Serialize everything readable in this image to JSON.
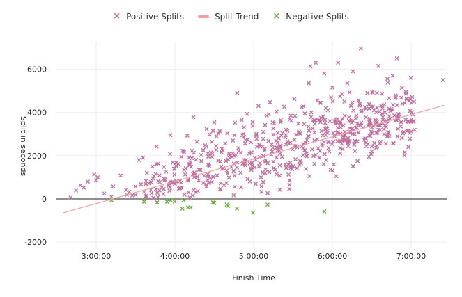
{
  "legend": {
    "positive_label": "Positive Splits",
    "trend_label": "Split Trend",
    "negative_label": "Negative Splits"
  },
  "colors": {
    "positive": "#c0709e",
    "negative": "#6aaa3a",
    "trend": "#f4a0a0",
    "zero_line": "#222222",
    "grid": "#eeeeee"
  },
  "chart_data": {
    "type": "scatter",
    "title": "",
    "xlabel": "Finish Time",
    "ylabel": "Split in seconds",
    "x_ticks": [
      "3:00:00",
      "4:00:00",
      "5:00:00",
      "6:00:00",
      "7:00:00"
    ],
    "y_ticks": [
      -2000,
      0,
      2000,
      4000,
      6000
    ],
    "xlim_seconds": [
      9300,
      26800
    ],
    "ylim": [
      -2200,
      7200
    ],
    "grid": true,
    "legend_position": "top",
    "trend_line": {
      "x_seconds": [
        9300,
        26700
      ],
      "y": [
        -640,
        4330
      ]
    },
    "series": [
      {
        "name": "Negative Splits",
        "points": [
          [
            11500,
            -60
          ],
          [
            12990,
            -130
          ],
          [
            13590,
            -160
          ],
          [
            14040,
            -130
          ],
          [
            14200,
            -60
          ],
          [
            14390,
            -130
          ],
          [
            14740,
            -450
          ],
          [
            14800,
            -60
          ],
          [
            15000,
            -390
          ],
          [
            15120,
            -390
          ],
          [
            16140,
            -160
          ],
          [
            16200,
            -190
          ],
          [
            16770,
            -260
          ],
          [
            16830,
            -320
          ],
          [
            17240,
            -450
          ],
          [
            17970,
            -640
          ],
          [
            18640,
            -260
          ],
          [
            21230,
            -580
          ]
        ]
      },
      {
        "name": "Positive Splits",
        "points": [
          [
            9630,
            60
          ],
          [
            9880,
            390
          ],
          [
            10080,
            620
          ],
          [
            10230,
            520
          ],
          [
            10420,
            800
          ],
          [
            10710,
            1130
          ],
          [
            10780,
            860
          ],
          [
            10870,
            1000
          ],
          [
            11170,
            250
          ],
          [
            11500,
            100
          ],
          [
            11580,
            580
          ],
          [
            11920,
            1080
          ],
          [
            12160,
            420
          ],
          [
            12200,
            190
          ],
          [
            12320,
            330
          ],
          [
            12450,
            160
          ],
          [
            12600,
            580
          ],
          [
            12850,
            680
          ],
          [
            12990,
            320
          ],
          [
            13100,
            150
          ],
          [
            13200,
            720
          ],
          [
            13300,
            420
          ],
          [
            13400,
            950
          ],
          [
            13520,
            1150
          ],
          [
            13600,
            280
          ],
          [
            13700,
            770
          ],
          [
            13800,
            540
          ],
          [
            13900,
            1480
          ],
          [
            13950,
            900
          ],
          [
            14000,
            1260
          ],
          [
            14100,
            640
          ],
          [
            14150,
            380
          ],
          [
            14180,
            2080
          ],
          [
            14200,
            2950
          ],
          [
            14300,
            1680
          ],
          [
            14380,
            1120
          ],
          [
            14480,
            810
          ],
          [
            14560,
            1620
          ],
          [
            14640,
            490
          ],
          [
            14700,
            1950
          ],
          [
            14800,
            2210
          ],
          [
            14900,
            1420
          ],
          [
            15000,
            900
          ],
          [
            15100,
            1700
          ],
          [
            15180,
            2230
          ],
          [
            15250,
            3780
          ],
          [
            15300,
            1100
          ],
          [
            15400,
            2650
          ],
          [
            15500,
            1350
          ],
          [
            15600,
            2030
          ],
          [
            15700,
            740
          ],
          [
            15780,
            2480
          ],
          [
            15850,
            3230
          ],
          [
            15950,
            1580
          ],
          [
            16050,
            2150
          ],
          [
            16150,
            1020
          ],
          [
            16200,
            3540
          ],
          [
            16300,
            2900
          ],
          [
            16380,
            1770
          ],
          [
            16450,
            3130
          ],
          [
            16550,
            2320
          ],
          [
            16650,
            640
          ],
          [
            16700,
            2570
          ],
          [
            16800,
            3030
          ],
          [
            16900,
            1900
          ],
          [
            16980,
            1480
          ],
          [
            17050,
            2700
          ],
          [
            17150,
            3520
          ],
          [
            17250,
            4900
          ],
          [
            17300,
            2350
          ],
          [
            17400,
            1210
          ],
          [
            17450,
            3650
          ],
          [
            17550,
            2870
          ],
          [
            17640,
            1800
          ],
          [
            17700,
            3930
          ],
          [
            17800,
            2100
          ],
          [
            17880,
            2620
          ],
          [
            17950,
            3380
          ],
          [
            18050,
            1450
          ],
          [
            18120,
            2930
          ],
          [
            18220,
            4300
          ],
          [
            18300,
            2420
          ],
          [
            18360,
            580
          ],
          [
            18440,
            3100
          ],
          [
            18520,
            1720
          ],
          [
            18600,
            3850
          ],
          [
            18680,
            2680
          ],
          [
            18750,
            4470
          ],
          [
            18820,
            2040
          ],
          [
            18900,
            3250
          ],
          [
            18980,
            1350
          ],
          [
            19050,
            4030
          ],
          [
            19150,
            2800
          ],
          [
            19230,
            3550
          ],
          [
            19300,
            1950
          ],
          [
            19400,
            4270
          ],
          [
            19480,
            2520
          ],
          [
            19550,
            3150
          ],
          [
            19640,
            660
          ],
          [
            19700,
            3850
          ],
          [
            19780,
            2300
          ],
          [
            19860,
            4620
          ],
          [
            19950,
            2980
          ],
          [
            20040,
            3480
          ],
          [
            20100,
            1580
          ],
          [
            20200,
            4250
          ],
          [
            20270,
            2550
          ],
          [
            20340,
            3950
          ],
          [
            20430,
            2100
          ],
          [
            20520,
            5350
          ],
          [
            20600,
            6130
          ],
          [
            20700,
            3250
          ],
          [
            20780,
            2700
          ],
          [
            20840,
            6300
          ],
          [
            20920,
            4550
          ],
          [
            21000,
            1900
          ],
          [
            21080,
            3750
          ],
          [
            21150,
            2450
          ],
          [
            21230,
            5800
          ],
          [
            21300,
            4200
          ],
          [
            21380,
            3050
          ],
          [
            21460,
            2200
          ],
          [
            21540,
            4700
          ],
          [
            21600,
            5150
          ],
          [
            21700,
            2900
          ],
          [
            21780,
            3650
          ],
          [
            21860,
            6300
          ],
          [
            21950,
            2350
          ],
          [
            22030,
            4850
          ],
          [
            22100,
            3400
          ],
          [
            22200,
            2700
          ],
          [
            22280,
            5350
          ],
          [
            22360,
            3100
          ],
          [
            22450,
            4300
          ],
          [
            22540,
            5900
          ],
          [
            22600,
            2500
          ],
          [
            22700,
            3850
          ],
          [
            22800,
            4550
          ],
          [
            22900,
            6950
          ],
          [
            23000,
            3300
          ],
          [
            23100,
            2800
          ],
          [
            23200,
            4900
          ],
          [
            23300,
            3700
          ],
          [
            23400,
            2200
          ],
          [
            23500,
            4100
          ],
          [
            23600,
            3050
          ],
          [
            23700,
            6150
          ],
          [
            23800,
            2650
          ],
          [
            23900,
            3500
          ],
          [
            24000,
            4000
          ],
          [
            24200,
            2900
          ],
          [
            24350,
            5700
          ],
          [
            24500,
            4700
          ],
          [
            24550,
            6500
          ],
          [
            24650,
            3900
          ],
          [
            25000,
            4600
          ],
          [
            25200,
            4450
          ],
          [
            26650,
            5500
          ]
        ]
      }
    ]
  }
}
